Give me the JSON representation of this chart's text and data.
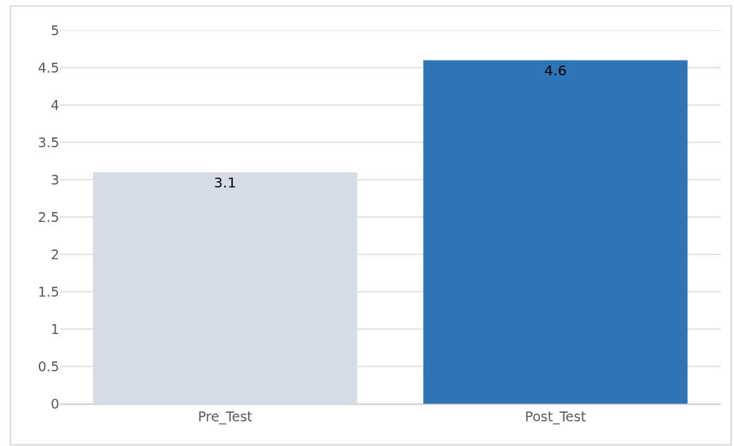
{
  "chart_data": {
    "type": "bar",
    "categories": [
      "Pre_Test",
      "Post_Test"
    ],
    "values": [
      3.1,
      4.6
    ],
    "colors": [
      "#d6dce5",
      "#2e75b6"
    ],
    "ylim": [
      0,
      5
    ],
    "yticks": [
      0,
      0.5,
      1,
      1.5,
      2,
      2.5,
      3,
      3.5,
      4,
      4.5,
      5
    ],
    "grid": "y",
    "data_labels": true
  }
}
